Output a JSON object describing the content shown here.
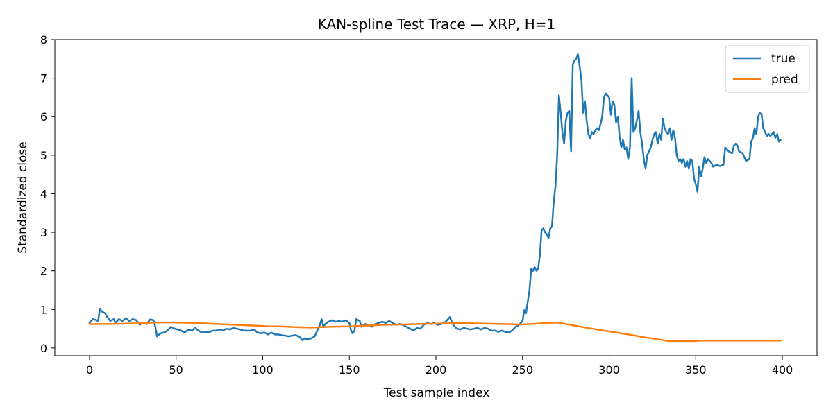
{
  "chart_data": {
    "type": "line",
    "title": "KAN-spline Test Trace — XRP, H=1",
    "xlabel": "Test sample index",
    "ylabel": "Standardized close",
    "xlim": [
      -20,
      420
    ],
    "ylim": [
      -0.2,
      8
    ],
    "xticks": [
      0,
      50,
      100,
      150,
      200,
      250,
      300,
      350,
      400
    ],
    "yticks": [
      0,
      1,
      2,
      3,
      4,
      5,
      6,
      7,
      8
    ],
    "grid": false,
    "legend_position": "top-right",
    "series": [
      {
        "name": "true",
        "color": "#1f77b4",
        "points": [
          [
            0,
            0.65
          ],
          [
            2,
            0.75
          ],
          [
            4,
            0.72
          ],
          [
            5,
            0.7
          ],
          [
            6,
            1.02
          ],
          [
            7,
            0.95
          ],
          [
            9,
            0.9
          ],
          [
            10,
            0.82
          ],
          [
            12,
            0.7
          ],
          [
            14,
            0.75
          ],
          [
            15,
            0.65
          ],
          [
            17,
            0.75
          ],
          [
            19,
            0.7
          ],
          [
            21,
            0.77
          ],
          [
            23,
            0.7
          ],
          [
            25,
            0.75
          ],
          [
            27,
            0.72
          ],
          [
            29,
            0.6
          ],
          [
            31,
            0.66
          ],
          [
            33,
            0.62
          ],
          [
            35,
            0.74
          ],
          [
            37,
            0.72
          ],
          [
            38,
            0.55
          ],
          [
            39,
            0.3
          ],
          [
            41,
            0.38
          ],
          [
            43,
            0.4
          ],
          [
            45,
            0.45
          ],
          [
            47,
            0.55
          ],
          [
            49,
            0.5
          ],
          [
            51,
            0.48
          ],
          [
            53,
            0.45
          ],
          [
            55,
            0.4
          ],
          [
            57,
            0.48
          ],
          [
            59,
            0.45
          ],
          [
            61,
            0.52
          ],
          [
            63,
            0.45
          ],
          [
            65,
            0.4
          ],
          [
            67,
            0.42
          ],
          [
            69,
            0.4
          ],
          [
            71,
            0.45
          ],
          [
            73,
            0.45
          ],
          [
            75,
            0.48
          ],
          [
            77,
            0.45
          ],
          [
            79,
            0.5
          ],
          [
            81,
            0.48
          ],
          [
            83,
            0.52
          ],
          [
            85,
            0.5
          ],
          [
            87,
            0.48
          ],
          [
            89,
            0.45
          ],
          [
            91,
            0.45
          ],
          [
            93,
            0.45
          ],
          [
            95,
            0.48
          ],
          [
            97,
            0.4
          ],
          [
            99,
            0.38
          ],
          [
            101,
            0.4
          ],
          [
            103,
            0.35
          ],
          [
            105,
            0.4
          ],
          [
            107,
            0.35
          ],
          [
            109,
            0.35
          ],
          [
            111,
            0.33
          ],
          [
            113,
            0.32
          ],
          [
            115,
            0.3
          ],
          [
            117,
            0.32
          ],
          [
            119,
            0.33
          ],
          [
            121,
            0.3
          ],
          [
            123,
            0.2
          ],
          [
            124,
            0.25
          ],
          [
            126,
            0.22
          ],
          [
            128,
            0.25
          ],
          [
            130,
            0.3
          ],
          [
            132,
            0.5
          ],
          [
            133,
            0.6
          ],
          [
            134,
            0.75
          ],
          [
            135,
            0.55
          ],
          [
            136,
            0.62
          ],
          [
            138,
            0.68
          ],
          [
            140,
            0.72
          ],
          [
            142,
            0.68
          ],
          [
            144,
            0.7
          ],
          [
            146,
            0.68
          ],
          [
            148,
            0.72
          ],
          [
            150,
            0.65
          ],
          [
            151,
            0.45
          ],
          [
            152,
            0.38
          ],
          [
            153,
            0.45
          ],
          [
            154,
            0.75
          ],
          [
            156,
            0.7
          ],
          [
            157,
            0.55
          ],
          [
            159,
            0.62
          ],
          [
            161,
            0.6
          ],
          [
            163,
            0.55
          ],
          [
            165,
            0.62
          ],
          [
            167,
            0.65
          ],
          [
            169,
            0.68
          ],
          [
            171,
            0.65
          ],
          [
            173,
            0.7
          ],
          [
            175,
            0.65
          ],
          [
            177,
            0.6
          ],
          [
            179,
            0.62
          ],
          [
            181,
            0.6
          ],
          [
            183,
            0.55
          ],
          [
            185,
            0.5
          ],
          [
            187,
            0.45
          ],
          [
            189,
            0.52
          ],
          [
            191,
            0.5
          ],
          [
            193,
            0.6
          ],
          [
            195,
            0.65
          ],
          [
            197,
            0.62
          ],
          [
            199,
            0.65
          ],
          [
            201,
            0.6
          ],
          [
            203,
            0.62
          ],
          [
            205,
            0.65
          ],
          [
            207,
            0.75
          ],
          [
            208,
            0.8
          ],
          [
            209,
            0.7
          ],
          [
            210,
            0.6
          ],
          [
            212,
            0.5
          ],
          [
            214,
            0.48
          ],
          [
            216,
            0.52
          ],
          [
            218,
            0.5
          ],
          [
            220,
            0.48
          ],
          [
            222,
            0.5
          ],
          [
            224,
            0.52
          ],
          [
            226,
            0.48
          ],
          [
            228,
            0.52
          ],
          [
            230,
            0.5
          ],
          [
            232,
            0.45
          ],
          [
            234,
            0.45
          ],
          [
            236,
            0.42
          ],
          [
            238,
            0.45
          ],
          [
            240,
            0.42
          ],
          [
            242,
            0.4
          ],
          [
            244,
            0.45
          ],
          [
            245,
            0.5
          ],
          [
            246,
            0.55
          ],
          [
            248,
            0.6
          ],
          [
            250,
            0.7
          ],
          [
            251,
            0.98
          ],
          [
            252,
            0.9
          ],
          [
            253,
            1.2
          ],
          [
            254,
            1.5
          ],
          [
            255,
            2.05
          ],
          [
            256,
            2.0
          ],
          [
            257,
            2.1
          ],
          [
            258,
            2.0
          ],
          [
            259,
            2.05
          ],
          [
            260,
            2.4
          ],
          [
            261,
            3.05
          ],
          [
            262,
            3.1
          ],
          [
            263,
            3.0
          ],
          [
            264,
            2.95
          ],
          [
            265,
            2.85
          ],
          [
            266,
            3.1
          ],
          [
            267,
            3.15
          ],
          [
            268,
            3.8
          ],
          [
            269,
            4.2
          ],
          [
            270,
            5.0
          ],
          [
            271,
            6.55
          ],
          [
            272,
            6.1
          ],
          [
            273,
            5.6
          ],
          [
            274,
            5.3
          ],
          [
            275,
            5.9
          ],
          [
            276,
            6.1
          ],
          [
            277,
            6.15
          ],
          [
            278,
            5.1
          ],
          [
            279,
            7.35
          ],
          [
            280,
            7.45
          ],
          [
            281,
            7.5
          ],
          [
            282,
            7.62
          ],
          [
            283,
            7.3
          ],
          [
            284,
            6.95
          ],
          [
            285,
            6.1
          ],
          [
            286,
            6.4
          ],
          [
            287,
            5.9
          ],
          [
            288,
            5.55
          ],
          [
            289,
            5.45
          ],
          [
            290,
            5.6
          ],
          [
            291,
            5.55
          ],
          [
            292,
            5.65
          ],
          [
            293,
            5.7
          ],
          [
            294,
            5.65
          ],
          [
            295,
            5.8
          ],
          [
            296,
            6.0
          ],
          [
            297,
            6.5
          ],
          [
            298,
            6.6
          ],
          [
            299,
            6.55
          ],
          [
            300,
            6.5
          ],
          [
            301,
            6.05
          ],
          [
            302,
            6.4
          ],
          [
            303,
            6.3
          ],
          [
            304,
            5.85
          ],
          [
            305,
            6.0
          ],
          [
            306,
            5.5
          ],
          [
            307,
            5.2
          ],
          [
            308,
            5.4
          ],
          [
            309,
            5.15
          ],
          [
            310,
            5.2
          ],
          [
            311,
            4.9
          ],
          [
            312,
            5.2
          ],
          [
            313,
            7.0
          ],
          [
            314,
            5.6
          ],
          [
            315,
            5.7
          ],
          [
            316,
            5.9
          ],
          [
            317,
            6.15
          ],
          [
            318,
            5.6
          ],
          [
            319,
            5.3
          ],
          [
            320,
            4.9
          ],
          [
            321,
            4.65
          ],
          [
            322,
            5.0
          ],
          [
            323,
            5.1
          ],
          [
            324,
            5.2
          ],
          [
            325,
            5.4
          ],
          [
            326,
            5.55
          ],
          [
            327,
            5.6
          ],
          [
            328,
            5.3
          ],
          [
            329,
            5.55
          ],
          [
            330,
            5.4
          ],
          [
            331,
            5.95
          ],
          [
            332,
            5.7
          ],
          [
            333,
            5.6
          ],
          [
            334,
            5.55
          ],
          [
            335,
            5.7
          ],
          [
            336,
            5.4
          ],
          [
            337,
            5.65
          ],
          [
            338,
            5.45
          ],
          [
            339,
            5.0
          ],
          [
            340,
            4.85
          ],
          [
            341,
            4.9
          ],
          [
            342,
            4.8
          ],
          [
            343,
            4.9
          ],
          [
            344,
            4.7
          ],
          [
            345,
            4.85
          ],
          [
            346,
            4.65
          ],
          [
            347,
            4.9
          ],
          [
            348,
            4.85
          ],
          [
            349,
            4.4
          ],
          [
            350,
            4.25
          ],
          [
            351,
            4.05
          ],
          [
            352,
            4.7
          ],
          [
            353,
            4.45
          ],
          [
            354,
            4.65
          ],
          [
            355,
            4.95
          ],
          [
            356,
            4.8
          ],
          [
            357,
            4.9
          ],
          [
            358,
            4.85
          ],
          [
            359,
            4.8
          ],
          [
            360,
            4.7
          ],
          [
            362,
            4.75
          ],
          [
            364,
            4.72
          ],
          [
            366,
            4.75
          ],
          [
            367,
            5.2
          ],
          [
            369,
            5.1
          ],
          [
            371,
            5.05
          ],
          [
            372,
            5.25
          ],
          [
            373,
            5.3
          ],
          [
            374,
            5.25
          ],
          [
            375,
            5.1
          ],
          [
            377,
            5.05
          ],
          [
            378,
            4.95
          ],
          [
            379,
            4.85
          ],
          [
            381,
            4.9
          ],
          [
            382,
            5.35
          ],
          [
            383,
            5.45
          ],
          [
            384,
            5.7
          ],
          [
            385,
            5.55
          ],
          [
            386,
            6.0
          ],
          [
            387,
            6.1
          ],
          [
            388,
            6.05
          ],
          [
            389,
            5.7
          ],
          [
            390,
            5.6
          ],
          [
            391,
            5.5
          ],
          [
            392,
            5.55
          ],
          [
            393,
            5.5
          ],
          [
            394,
            5.55
          ],
          [
            395,
            5.6
          ],
          [
            396,
            5.45
          ],
          [
            397,
            5.55
          ],
          [
            398,
            5.35
          ],
          [
            399,
            5.4
          ]
        ]
      },
      {
        "name": "pred",
        "color": "#ff7f0e",
        "points": [
          [
            0,
            0.62
          ],
          [
            10,
            0.62
          ],
          [
            20,
            0.63
          ],
          [
            30,
            0.64
          ],
          [
            38,
            0.66
          ],
          [
            50,
            0.66
          ],
          [
            60,
            0.65
          ],
          [
            70,
            0.63
          ],
          [
            80,
            0.61
          ],
          [
            90,
            0.59
          ],
          [
            100,
            0.57
          ],
          [
            103,
            0.56
          ],
          [
            110,
            0.56
          ],
          [
            120,
            0.54
          ],
          [
            128,
            0.53
          ],
          [
            140,
            0.55
          ],
          [
            150,
            0.56
          ],
          [
            160,
            0.58
          ],
          [
            170,
            0.6
          ],
          [
            180,
            0.61
          ],
          [
            190,
            0.62
          ],
          [
            200,
            0.63
          ],
          [
            210,
            0.64
          ],
          [
            220,
            0.64
          ],
          [
            230,
            0.63
          ],
          [
            240,
            0.62
          ],
          [
            248,
            0.61
          ],
          [
            255,
            0.62
          ],
          [
            262,
            0.64
          ],
          [
            270,
            0.66
          ],
          [
            280,
            0.58
          ],
          [
            290,
            0.5
          ],
          [
            300,
            0.43
          ],
          [
            310,
            0.36
          ],
          [
            320,
            0.28
          ],
          [
            330,
            0.21
          ],
          [
            334,
            0.18
          ],
          [
            340,
            0.18
          ],
          [
            350,
            0.18
          ],
          [
            352,
            0.19
          ],
          [
            360,
            0.19
          ],
          [
            370,
            0.19
          ],
          [
            380,
            0.19
          ],
          [
            390,
            0.19
          ],
          [
            399,
            0.19
          ]
        ]
      }
    ]
  }
}
